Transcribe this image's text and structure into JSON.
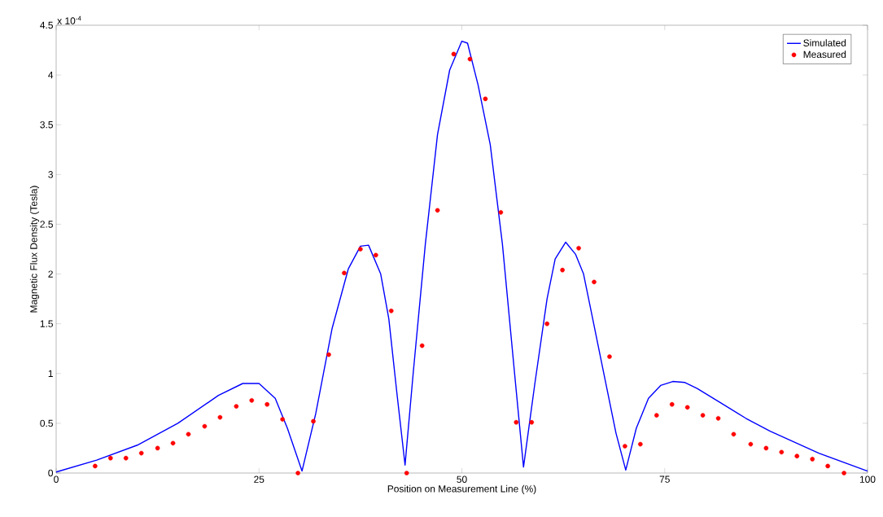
{
  "chart_data": {
    "type": "line",
    "xlabel": "Position on Measurement Line (%)",
    "ylabel": "Magnetic Flux Density (Tesla)",
    "annotations": [
      "x 10$^{-4}$"
    ],
    "xlim": [
      0,
      100
    ],
    "xticks": [
      0,
      25,
      50,
      75,
      100
    ],
    "ylim": [
      0,
      4.5
    ],
    "yticks": [
      0,
      0.5,
      1,
      1.5,
      2,
      2.5,
      3,
      3.5,
      4,
      4.5
    ],
    "legend": "top right",
    "series": [
      {
        "name": "Simulated",
        "color": "#0000ff",
        "marker": "none",
        "line_style": "solid",
        "x": [
          0,
          5,
          10,
          15,
          20,
          23,
          25,
          27,
          28.5,
          30.3,
          32,
          34,
          36,
          37.5,
          38.5,
          40,
          41,
          42,
          43,
          44,
          45.5,
          47,
          48.5,
          50,
          50.7,
          52,
          53.5,
          55,
          56.5,
          57.6,
          59,
          60.5,
          61.5,
          62.8,
          64,
          65,
          66,
          67.5,
          69,
          70.2,
          71.5,
          73,
          74.5,
          76,
          77.5,
          79,
          82,
          85,
          88,
          91,
          94,
          97,
          100
        ],
        "values": [
          0.01,
          0.13,
          0.28,
          0.5,
          0.78,
          0.9,
          0.9,
          0.75,
          0.45,
          0.02,
          0.6,
          1.45,
          2.05,
          2.28,
          2.29,
          2.0,
          1.55,
          0.8,
          0.08,
          1.0,
          2.3,
          3.4,
          4.05,
          4.34,
          4.32,
          3.9,
          3.3,
          2.3,
          1.0,
          0.06,
          0.9,
          1.75,
          2.15,
          2.32,
          2.2,
          2.0,
          1.6,
          1.0,
          0.4,
          0.03,
          0.45,
          0.75,
          0.88,
          0.92,
          0.91,
          0.85,
          0.7,
          0.55,
          0.42,
          0.31,
          0.2,
          0.11,
          0.02
        ]
      },
      {
        "name": "Measured",
        "type": "scatter",
        "color": "#ff0000",
        "marker": "circle",
        "x": [
          4.8,
          6.7,
          8.6,
          10.5,
          12.5,
          14.4,
          16.3,
          18.3,
          20.2,
          22.2,
          24.1,
          26.0,
          27.9,
          29.8,
          31.7,
          33.6,
          35.5,
          37.5,
          39.4,
          41.3,
          43.2,
          45.1,
          47.0,
          49.0,
          51.0,
          52.9,
          54.8,
          56.7,
          58.6,
          60.5,
          62.4,
          64.4,
          66.3,
          68.2,
          70.1,
          72.0,
          74.0,
          75.9,
          77.8,
          79.7,
          81.6,
          83.5,
          85.6,
          87.5,
          89.4,
          91.3,
          93.2,
          95.1,
          97.1
        ],
        "values": [
          0.07,
          0.15,
          0.15,
          0.2,
          0.25,
          0.3,
          0.39,
          0.47,
          0.56,
          0.67,
          0.73,
          0.69,
          0.54,
          0,
          0.52,
          1.19,
          2.01,
          2.25,
          2.19,
          1.63,
          0,
          1.28,
          2.64,
          4.21,
          4.16,
          3.76,
          2.62,
          0.51,
          0.51,
          1.5,
          2.04,
          2.26,
          1.92,
          1.17,
          0.27,
          0.29,
          0.58,
          0.69,
          0.66,
          0.58,
          0.55,
          0.39,
          0.29,
          0.25,
          0.21,
          0.17,
          0.14,
          0.07,
          0
        ]
      }
    ]
  }
}
